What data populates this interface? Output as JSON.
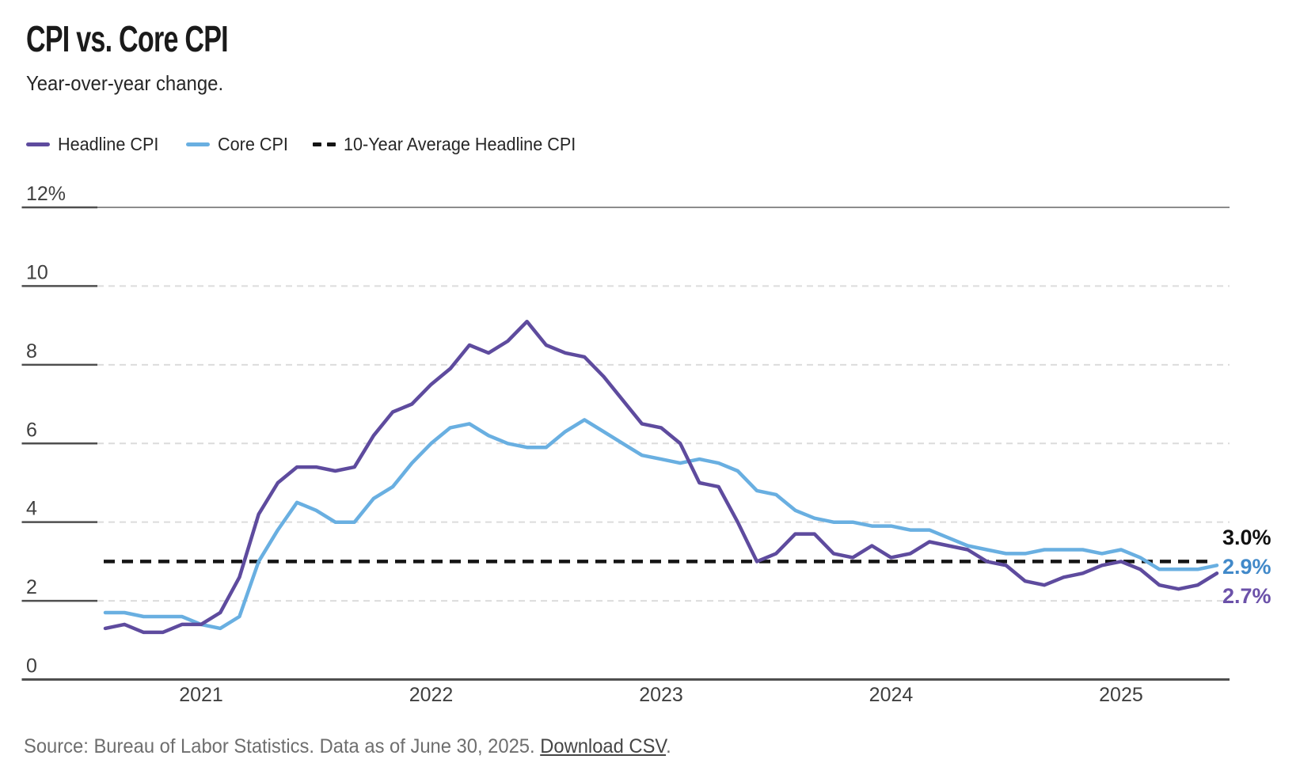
{
  "header": {
    "title": "CPI vs. Core CPI",
    "subtitle": "Year-over-year change."
  },
  "legend": [
    {
      "label": "Headline CPI",
      "color": "#5e4b9e",
      "style": "solid"
    },
    {
      "label": "Core CPI",
      "color": "#69afe1",
      "style": "solid"
    },
    {
      "label": "10-Year Average Headline CPI",
      "color": "#141414",
      "style": "dashed"
    }
  ],
  "footer": {
    "source_prefix": "Source: Bureau of Labor Statistics. Data as of June 30, 2025. ",
    "link_label": "Download CSV",
    "suffix": "."
  },
  "chart_data": {
    "type": "line",
    "title": "CPI vs. Core CPI",
    "subtitle": "Year-over-year change.",
    "x_unit": "month",
    "x_start": "2020-08",
    "x_end": "2025-06",
    "x_ticks": [
      {
        "label": "2021",
        "month_index": 5
      },
      {
        "label": "2022",
        "month_index": 17
      },
      {
        "label": "2023",
        "month_index": 29
      },
      {
        "label": "2024",
        "month_index": 41
      },
      {
        "label": "2025",
        "month_index": 53
      }
    ],
    "ylim": [
      0,
      12
    ],
    "y_ticks": [
      {
        "value": 0,
        "label": "0"
      },
      {
        "value": 2,
        "label": "2"
      },
      {
        "value": 4,
        "label": "4"
      },
      {
        "value": 6,
        "label": "6"
      },
      {
        "value": 8,
        "label": "8"
      },
      {
        "value": 10,
        "label": "10"
      },
      {
        "value": 12,
        "label": "12%"
      }
    ],
    "grid": "horizontal-dashed",
    "legend_position": "top",
    "series": [
      {
        "name": "Headline CPI",
        "color": "#5e4b9e",
        "end_label": "2.7%",
        "end_label_color": "#6b51a9",
        "values": [
          1.3,
          1.4,
          1.2,
          1.2,
          1.4,
          1.4,
          1.7,
          2.6,
          4.2,
          5.0,
          5.4,
          5.4,
          5.3,
          5.4,
          6.2,
          6.8,
          7.0,
          7.5,
          7.9,
          8.5,
          8.3,
          8.6,
          9.1,
          8.5,
          8.3,
          8.2,
          7.7,
          7.1,
          6.5,
          6.4,
          6.0,
          5.0,
          4.9,
          4.0,
          3.0,
          3.2,
          3.7,
          3.7,
          3.2,
          3.1,
          3.4,
          3.1,
          3.2,
          3.5,
          3.4,
          3.3,
          3.0,
          2.9,
          2.5,
          2.4,
          2.6,
          2.7,
          2.9,
          3.0,
          2.8,
          2.4,
          2.3,
          2.4,
          2.7
        ]
      },
      {
        "name": "Core CPI",
        "color": "#69afe1",
        "end_label": "2.9%",
        "end_label_color": "#4189c9",
        "values": [
          1.7,
          1.7,
          1.6,
          1.6,
          1.6,
          1.4,
          1.3,
          1.6,
          3.0,
          3.8,
          4.5,
          4.3,
          4.0,
          4.0,
          4.6,
          4.9,
          5.5,
          6.0,
          6.4,
          6.5,
          6.2,
          6.0,
          5.9,
          5.9,
          6.3,
          6.6,
          6.3,
          6.0,
          5.7,
          5.6,
          5.5,
          5.6,
          5.5,
          5.3,
          4.8,
          4.7,
          4.3,
          4.1,
          4.0,
          4.0,
          3.9,
          3.9,
          3.8,
          3.8,
          3.6,
          3.4,
          3.3,
          3.2,
          3.2,
          3.3,
          3.3,
          3.3,
          3.2,
          3.3,
          3.1,
          2.8,
          2.8,
          2.8,
          2.9
        ]
      }
    ],
    "reference_line": {
      "name": "10-Year Average Headline CPI",
      "value": 3.0,
      "label": "3.0%",
      "label_color": "#111111",
      "color": "#141414",
      "style": "dashed"
    }
  }
}
